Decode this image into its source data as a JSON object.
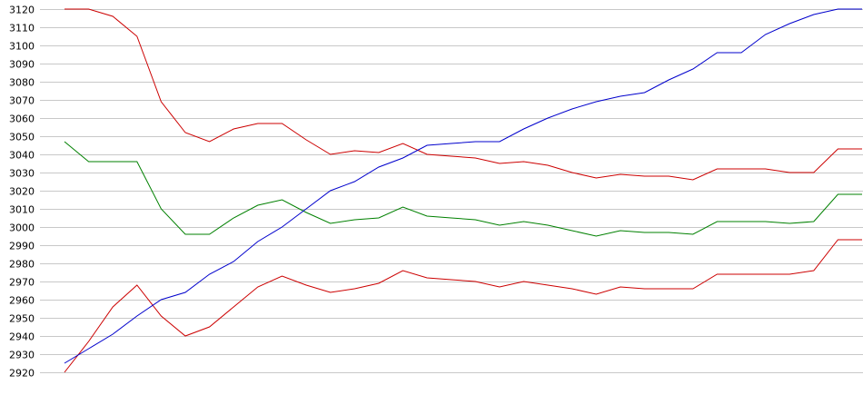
{
  "chart_data": {
    "type": "line",
    "title": "",
    "xlabel": "",
    "ylabel": "",
    "ylim": [
      2920,
      3120
    ],
    "yticks": [
      3120,
      3110,
      3100,
      3090,
      3080,
      3070,
      3060,
      3050,
      3040,
      3030,
      3020,
      3010,
      3000,
      2990,
      2980,
      2970,
      2960,
      2950,
      2940,
      2930,
      2920
    ],
    "grid": true,
    "legend": "none",
    "x": [
      1,
      2,
      3,
      4,
      5,
      6,
      7,
      8,
      9,
      10,
      11,
      12,
      13,
      14,
      15,
      16,
      17,
      18,
      19,
      20,
      21,
      22,
      23,
      24,
      25,
      26,
      27,
      28,
      29,
      30,
      31,
      32,
      33,
      34
    ],
    "series": [
      {
        "color": "#cc0000",
        "values": [
          3120,
          3120,
          3116,
          3105,
          3069,
          3052,
          3047,
          3054,
          3057,
          3057,
          3048,
          3040,
          3042,
          3041,
          3046,
          3040,
          3039,
          3038,
          3035,
          3036,
          3034,
          3030,
          3027,
          3029,
          3028,
          3028,
          3026,
          3032,
          3032,
          3032,
          3030,
          3030,
          3043,
          3043
        ]
      },
      {
        "color": "#008000",
        "values": [
          3047,
          3036,
          3036,
          3036,
          3010,
          2996,
          2996,
          3005,
          3012,
          3015,
          3008,
          3002,
          3004,
          3005,
          3011,
          3006,
          3005,
          3004,
          3001,
          3003,
          3001,
          2998,
          2995,
          2998,
          2997,
          2997,
          2996,
          3003,
          3003,
          3003,
          3002,
          3003,
          3018,
          3018
        ]
      },
      {
        "color": "#cc0000",
        "values": [
          2920,
          2937,
          2956,
          2968,
          2951,
          2940,
          2945,
          2956,
          2967,
          2973,
          2968,
          2964,
          2966,
          2969,
          2976,
          2972,
          2971,
          2970,
          2967,
          2970,
          2968,
          2966,
          2963,
          2967,
          2966,
          2966,
          2966,
          2974,
          2974,
          2974,
          2974,
          2976,
          2993,
          2993
        ]
      },
      {
        "color": "#0000cc",
        "values": [
          2925,
          2933,
          2941,
          2951,
          2960,
          2964,
          2974,
          2981,
          2992,
          3000,
          3010,
          3020,
          3025,
          3033,
          3038,
          3045,
          3046,
          3047,
          3047,
          3054,
          3060,
          3065,
          3069,
          3072,
          3074,
          3081,
          3087,
          3096,
          3096,
          3106,
          3112,
          3117,
          3120,
          3120
        ]
      }
    ]
  }
}
